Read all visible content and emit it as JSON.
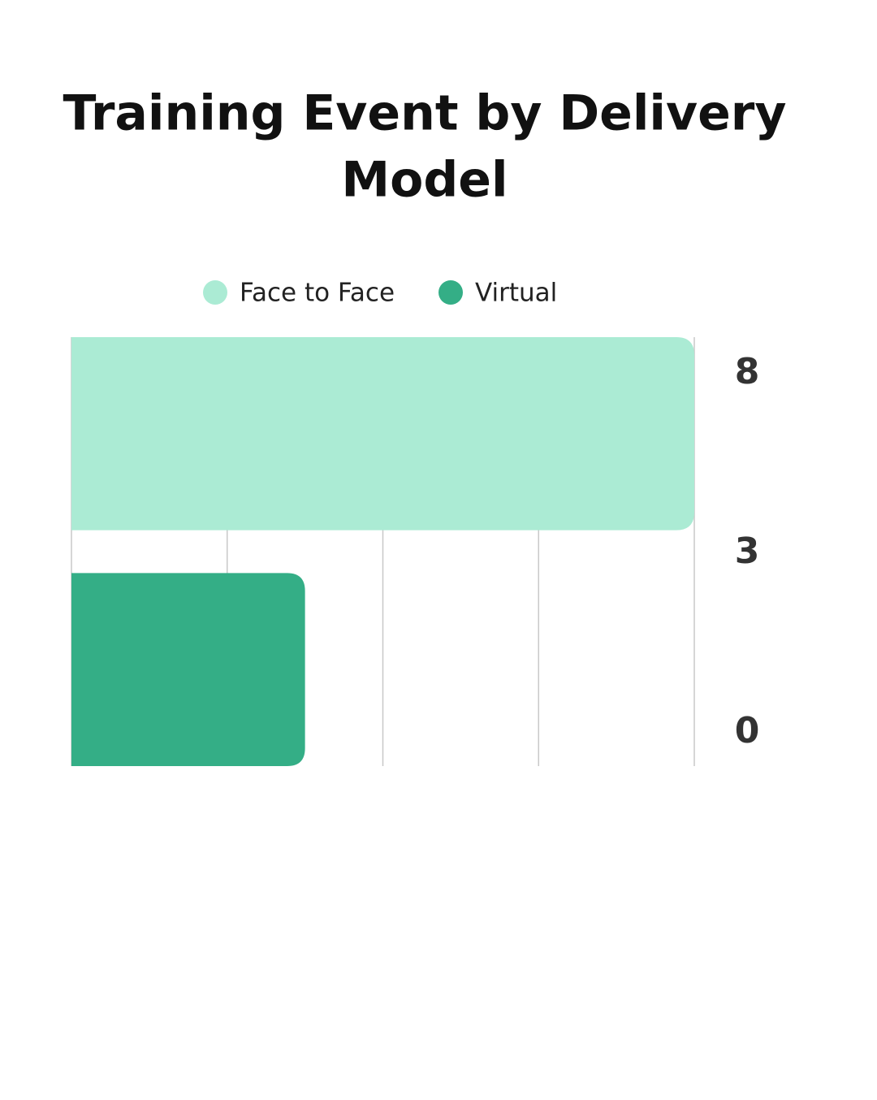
{
  "chart_data": {
    "type": "bar",
    "orientation": "horizontal",
    "title": [
      "Training Event by Delivery",
      "Model"
    ],
    "categories": [
      null
    ],
    "series": [
      {
        "name": "Face to Face",
        "color": "#abebd4",
        "values": [
          8
        ]
      },
      {
        "name": "Virtual",
        "color": "#34ae86",
        "values": [
          3
        ]
      }
    ],
    "xlim": [
      0,
      8
    ],
    "xticks": [
      0,
      2,
      4,
      6,
      8
    ],
    "grid": true,
    "legend": "top",
    "right_labels": [
      8,
      3,
      0
    ]
  }
}
